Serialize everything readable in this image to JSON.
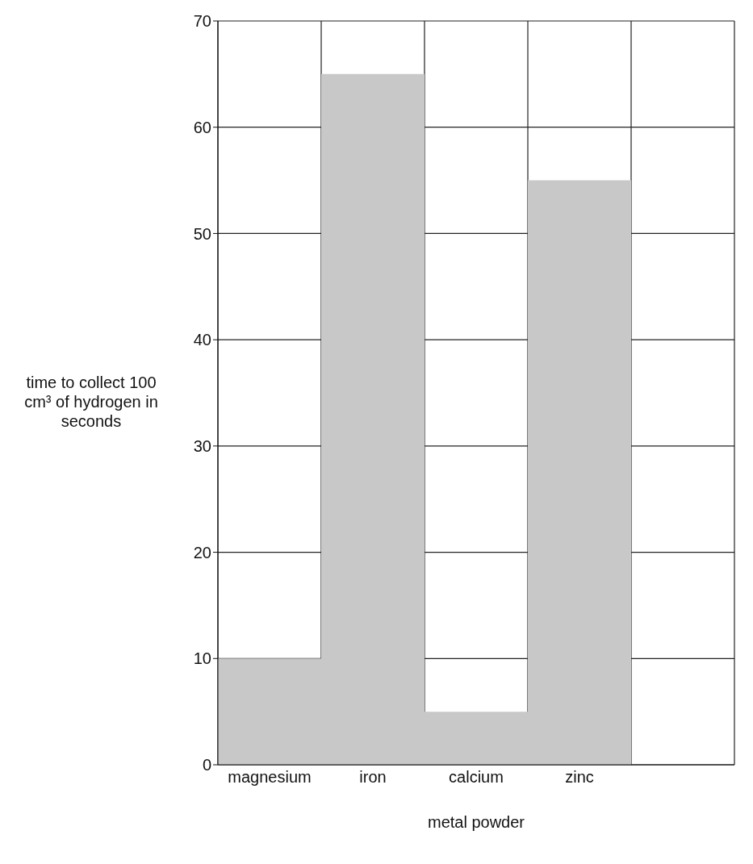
{
  "chart_data": {
    "type": "bar",
    "xlabel": "metal powder",
    "ylabel": "time to collect 100 cm³ of hydrogen in seconds",
    "categories": [
      "magnesium",
      "iron",
      "calcium",
      "zinc",
      null
    ],
    "values": [
      10,
      65,
      5,
      55,
      null
    ],
    "color": "#c8c8c8",
    "ylim": [
      0,
      70
    ],
    "yticks": [
      0,
      10,
      20,
      30,
      40,
      50,
      60,
      70
    ],
    "grid": true
  }
}
